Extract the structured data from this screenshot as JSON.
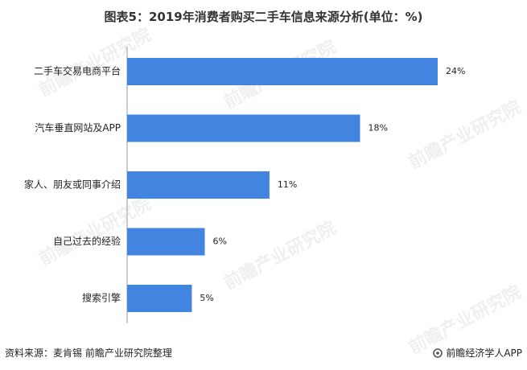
{
  "chart_data": {
    "type": "bar",
    "orientation": "horizontal",
    "title": "图表5：2019年消费者购买二手车信息来源分析(单位：%)",
    "categories": [
      "二手车交易电商平台",
      "汽车垂直网站及APP",
      "家人、朋友或同事介绍",
      "自己过去的经验",
      "搜索引擎"
    ],
    "values": [
      24,
      18,
      11,
      6,
      5
    ],
    "value_labels": [
      "24%",
      "18%",
      "11%",
      "6%",
      "5%"
    ],
    "unit": "%",
    "xlim": [
      0,
      24
    ],
    "bar_color": "#4285e0",
    "grid": false
  },
  "footer": {
    "source": "资料来源：麦肯锡 前瞻产业研究院整理",
    "brand": "前瞻经济学人APP"
  },
  "watermark": {
    "text": "前瞻产业研究院"
  }
}
